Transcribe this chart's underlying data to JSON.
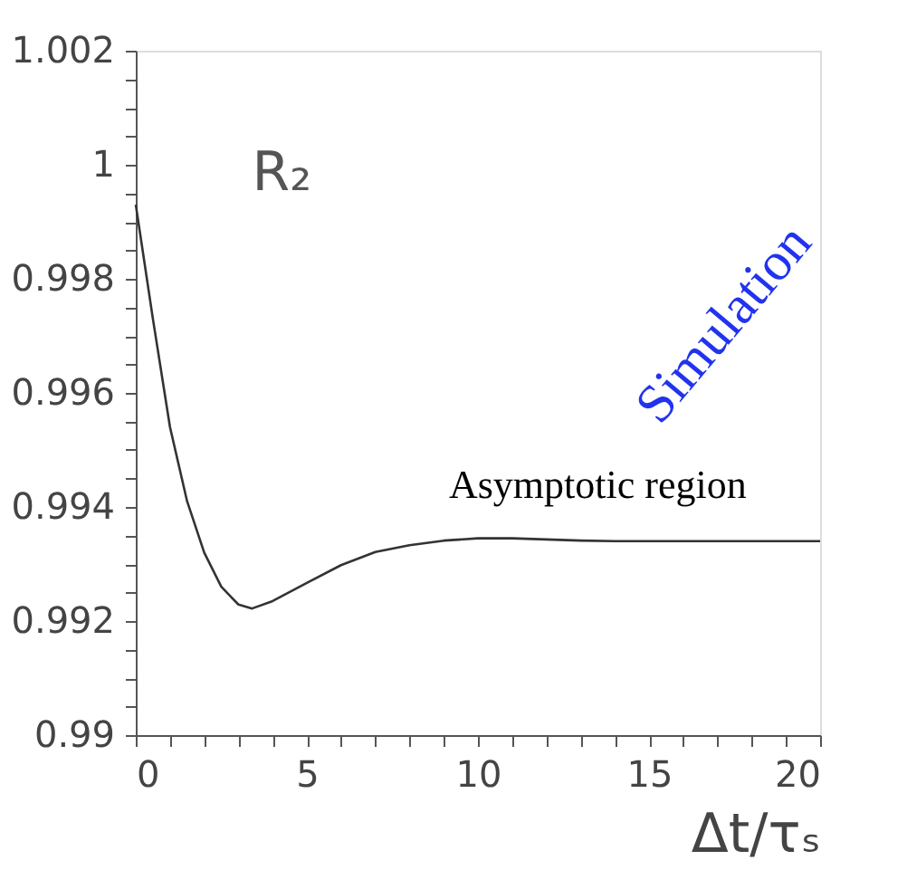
{
  "chart_data": {
    "type": "line",
    "xlabel": "Δt/τₛ",
    "x": [
      0,
      0.5,
      1,
      1.5,
      2,
      2.5,
      3,
      3.4,
      4,
      5,
      6,
      7,
      8,
      9,
      10,
      11,
      12,
      13,
      14,
      16,
      18,
      20
    ],
    "series": [
      {
        "color": "#333333",
        "values": [
          0.9993,
          0.9973,
          0.9954,
          0.9941,
          0.9932,
          0.9926,
          0.99229,
          0.99222,
          0.99235,
          0.99267,
          0.99298,
          0.99321,
          0.99333,
          0.99341,
          0.99345,
          0.99345,
          0.99343,
          0.99341,
          0.9934,
          0.9934,
          0.9934,
          0.9934
        ]
      }
    ],
    "xlim": [
      0,
      20
    ],
    "ylim": [
      0.99,
      1.002
    ],
    "xticks": [
      0,
      {
        "value": 1,
        "label": null
      },
      {
        "value": 2,
        "label": null
      },
      {
        "value": 3,
        "label": null
      },
      {
        "value": 4,
        "label": null
      },
      5,
      {
        "value": 6,
        "label": null
      },
      {
        "value": 7,
        "label": null
      },
      {
        "value": 8,
        "label": null
      },
      {
        "value": 9,
        "label": null
      },
      10,
      {
        "value": 11,
        "label": null
      },
      {
        "value": 12,
        "label": null
      },
      {
        "value": 13,
        "label": null
      },
      {
        "value": 14,
        "label": null
      },
      15,
      {
        "value": 16,
        "label": null
      },
      {
        "value": 17,
        "label": null
      },
      {
        "value": 18,
        "label": null
      },
      {
        "value": 19,
        "label": null
      },
      20
    ],
    "yticks": [
      0.99,
      {
        "value": 0.9905,
        "label": null
      },
      {
        "value": 0.991,
        "label": null
      },
      {
        "value": 0.9915,
        "label": null
      },
      0.992,
      {
        "value": 0.9925,
        "label": null
      },
      {
        "value": 0.993,
        "label": null
      },
      {
        "value": 0.9935,
        "label": null
      },
      0.994,
      {
        "value": 0.9945,
        "label": null
      },
      {
        "value": 0.995,
        "label": null
      },
      {
        "value": 0.9955,
        "label": null
      },
      0.996,
      {
        "value": 0.9965,
        "label": null
      },
      {
        "value": 0.997,
        "label": null
      },
      {
        "value": 0.9975,
        "label": null
      },
      0.998,
      {
        "value": 0.9985,
        "label": null
      },
      {
        "value": 0.999,
        "label": null
      },
      {
        "value": 0.9995,
        "label": null
      },
      {
        "value": 1,
        "label": "1"
      },
      {
        "value": 1.0005,
        "label": null
      },
      {
        "value": 1.001,
        "label": null
      },
      {
        "value": 1.0015,
        "label": null
      },
      1.002
    ],
    "annotations": [
      "R₂",
      "Asymptotic region",
      "Simulation"
    ],
    "grid": false,
    "marker": "none",
    "line_style": "solid"
  }
}
